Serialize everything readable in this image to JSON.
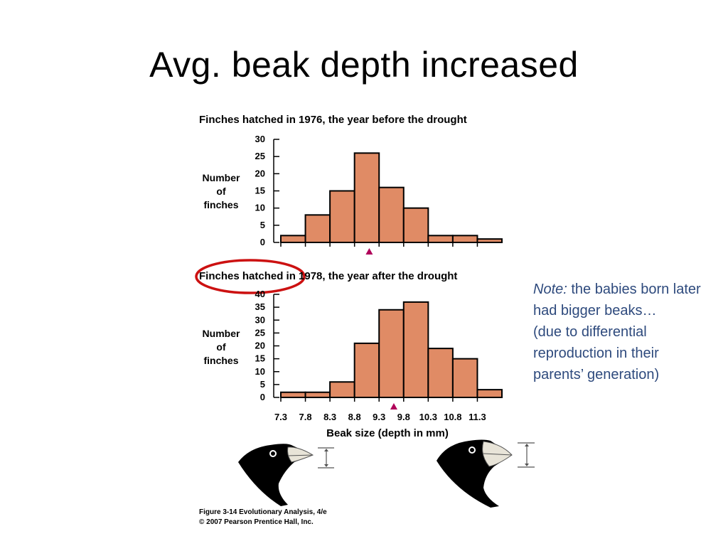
{
  "slide": {
    "title": "Avg. beak depth increased"
  },
  "note": {
    "label": "Note:",
    "line1": " the babies born later had bigger beaks…",
    "line2": "(due to differential reproduction in their parents’ generation)"
  },
  "credit": {
    "line1": "Figure 3-14  Evolutionary Analysis, 4/e",
    "line2": "© 2007 Pearson Prentice Hall, Inc."
  },
  "colors": {
    "bar_fill": "#e08b65",
    "marker": "#b0005a",
    "highlight": "#cc1111",
    "note_text": "#2e4a7d"
  },
  "xaxis": {
    "label": "Beak size (depth in mm)",
    "ticks": [
      "7.3",
      "7.8",
      "8.3",
      "8.8",
      "9.3",
      "9.8",
      "10.3",
      "10.8",
      "11.3"
    ]
  },
  "chart_data": [
    {
      "type": "bar",
      "title": "Finches hatched in 1976, the year before the drought",
      "ylabel": "Number of finches",
      "ylabel_lines": [
        "Number",
        "of",
        "finches"
      ],
      "ylim": [
        0,
        30
      ],
      "yticks": [
        "0",
        "5",
        "10",
        "15",
        "20",
        "25",
        "30"
      ],
      "bin_edges": [
        7.3,
        7.8,
        8.3,
        8.8,
        9.3,
        9.8,
        10.3,
        10.8,
        11.3,
        11.8
      ],
      "values": [
        2,
        8,
        15,
        26,
        16,
        10,
        2,
        2,
        1
      ],
      "mean_marker": 9.1
    },
    {
      "type": "bar",
      "title": "Finches hatched in 1978, the year after the drought",
      "ylabel": "Number of finches",
      "ylabel_lines": [
        "Number",
        "of",
        "finches"
      ],
      "ylim": [
        0,
        40
      ],
      "yticks": [
        "0",
        "5",
        "10",
        "15",
        "20",
        "25",
        "30",
        "35",
        "40"
      ],
      "bin_edges": [
        7.3,
        7.8,
        8.3,
        8.8,
        9.3,
        9.8,
        10.3,
        10.8,
        11.3,
        11.8
      ],
      "values": [
        2,
        2,
        6,
        21,
        34,
        37,
        19,
        15,
        3
      ],
      "mean_marker": 9.6
    }
  ]
}
